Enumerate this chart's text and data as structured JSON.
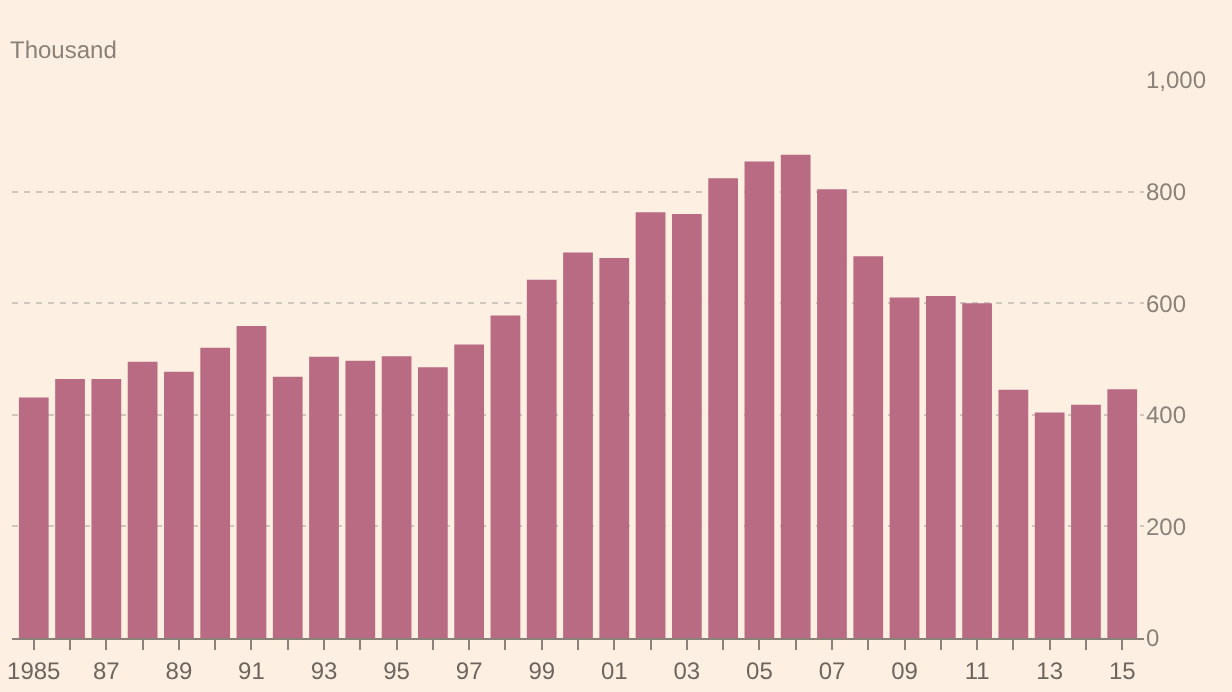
{
  "chart_data": {
    "type": "bar",
    "ylabel": "Thousand",
    "categories": [
      "1985",
      null,
      "87",
      null,
      "89",
      null,
      "91",
      null,
      "93",
      null,
      "95",
      null,
      "97",
      null,
      "99",
      null,
      "01",
      null,
      "03",
      null,
      "05",
      null,
      "07",
      null,
      "09",
      null,
      "11",
      null,
      "13",
      null,
      "15"
    ],
    "values": [
      431,
      464,
      464,
      495,
      477,
      520,
      559,
      468,
      504,
      497,
      505,
      485,
      526,
      578,
      642,
      691,
      681,
      763,
      760,
      824,
      854,
      866,
      804,
      684,
      610,
      613,
      600,
      445,
      404,
      418,
      446
    ],
    "color": "#b86b82",
    "ylim": [
      0,
      1000
    ],
    "yticks": [
      0,
      200,
      400,
      600,
      800,
      {
        "value": 1000,
        "label": "1,000"
      }
    ],
    "grid": "y"
  }
}
